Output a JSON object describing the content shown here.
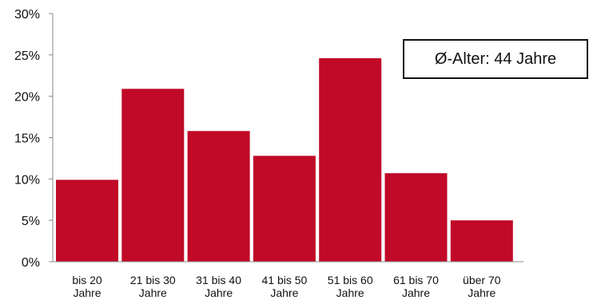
{
  "chart_data": {
    "type": "bar",
    "categories": [
      [
        "bis 20",
        "Jahre"
      ],
      [
        "21 bis 30",
        "Jahre"
      ],
      [
        "31 bis 40",
        "Jahre"
      ],
      [
        "41 bis 50",
        "Jahre"
      ],
      [
        "51 bis 60",
        "Jahre"
      ],
      [
        "61 bis 70",
        "Jahre"
      ],
      [
        "über 70",
        "Jahre"
      ]
    ],
    "values": [
      9.9,
      20.9,
      15.8,
      12.8,
      24.6,
      10.7,
      5.0
    ],
    "ylim": [
      0,
      30
    ],
    "yticks": [
      0,
      5,
      10,
      15,
      20,
      25,
      30
    ],
    "ytick_suffix": "%",
    "title": "",
    "xlabel": "",
    "ylabel": "",
    "grid": false,
    "bar_color": "#c00a27",
    "annotation": "Ø-Alter: 44 Jahre"
  }
}
